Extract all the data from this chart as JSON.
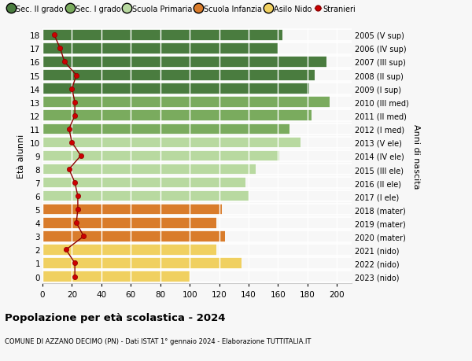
{
  "ages": [
    18,
    17,
    16,
    15,
    14,
    13,
    12,
    11,
    10,
    9,
    8,
    7,
    6,
    5,
    4,
    3,
    2,
    1,
    0
  ],
  "right_labels": [
    "2005 (V sup)",
    "2006 (IV sup)",
    "2007 (III sup)",
    "2008 (II sup)",
    "2009 (I sup)",
    "2010 (III med)",
    "2011 (II med)",
    "2012 (I med)",
    "2013 (V ele)",
    "2014 (IV ele)",
    "2015 (III ele)",
    "2016 (II ele)",
    "2017 (I ele)",
    "2018 (mater)",
    "2019 (mater)",
    "2020 (mater)",
    "2021 (nido)",
    "2022 (nido)",
    "2023 (nido)"
  ],
  "bar_values": [
    163,
    160,
    193,
    185,
    181,
    195,
    183,
    168,
    175,
    161,
    145,
    138,
    140,
    122,
    118,
    124,
    118,
    135,
    100
  ],
  "bar_colors": [
    "#4a7c3f",
    "#4a7c3f",
    "#4a7c3f",
    "#4a7c3f",
    "#4a7c3f",
    "#7aab5e",
    "#7aab5e",
    "#7aab5e",
    "#b8d9a0",
    "#b8d9a0",
    "#b8d9a0",
    "#b8d9a0",
    "#b8d9a0",
    "#d97c2b",
    "#d97c2b",
    "#d97c2b",
    "#f0d060",
    "#f0d060",
    "#f0d060"
  ],
  "stranieri_values": [
    8,
    12,
    15,
    23,
    20,
    22,
    22,
    18,
    20,
    26,
    18,
    22,
    24,
    24,
    23,
    28,
    16,
    22,
    22
  ],
  "legend_labels": [
    "Sec. II grado",
    "Sec. I grado",
    "Scuola Primaria",
    "Scuola Infanzia",
    "Asilo Nido",
    "Stranieri"
  ],
  "legend_colors": [
    "#4a7c3f",
    "#7aab5e",
    "#b8d9a0",
    "#d97c2b",
    "#f0d060",
    "#cc0000"
  ],
  "title": "Popolazione per età scolastica - 2024",
  "subtitle": "COMUNE DI AZZANO DECIMO (PN) - Dati ISTAT 1° gennaio 2024 - Elaborazione TUTTITALIA.IT",
  "ylabel_left": "Età alunni",
  "ylabel_right": "Anni di nascita",
  "x_ticks": [
    0,
    20,
    40,
    60,
    80,
    100,
    120,
    140,
    160,
    180,
    200
  ],
  "xlim_max": 210,
  "bg_color": "#f7f7f7",
  "grid_color": "#ffffff"
}
